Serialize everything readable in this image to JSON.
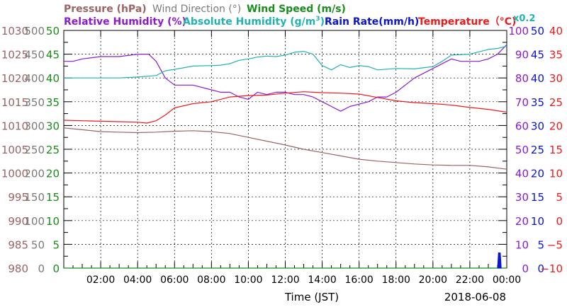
{
  "legend": {
    "pressure": "Pressure (hPa)",
    "wind_direction": "Wind Direction (°)",
    "wind_speed": "Wind Speed (m/s)",
    "relative_humidity": "Relative Humidity (%)",
    "absolute_humidity_prefix": "Absolute Humidity (g/m",
    "absolute_humidity_sup": "3",
    "absolute_humidity_suffix": ")",
    "rain_rate": "Rain Rate(mm/h)",
    "temperature": "Temperature（°C)",
    "abs_scale": "x0.2"
  },
  "colors": {
    "pressure": "#9a6464",
    "wind_direction": "#7a7a7a",
    "wind_speed": "#1a8c1a",
    "relative_humidity": "#8c1ad2",
    "absolute_humidity": "#22b2b2",
    "rain_rate": "#0a14d2",
    "temperature": "#ee1a1a"
  },
  "chart_data": {
    "type": "line",
    "xlabel": "Time (JST)",
    "date_label": "2018-06-08",
    "x_tick_labels": [
      "02:00",
      "04:00",
      "06:00",
      "08:00",
      "10:00",
      "12:00",
      "14:00",
      "16:00",
      "18:00",
      "20:00",
      "22:00",
      "00:00"
    ],
    "xlim_hours": [
      0,
      24
    ],
    "grid": true,
    "axes": {
      "pressure": {
        "ticks": [
          "1030",
          "1025",
          "1020",
          "1015",
          "1010",
          "1005",
          "1000",
          "995",
          "990",
          "985",
          "980"
        ],
        "range": [
          980,
          1030
        ]
      },
      "wind_direction": {
        "ticks": [
          "500",
          "450",
          "400",
          "350",
          "300",
          "250",
          "200",
          "150",
          "100",
          "50",
          "0"
        ],
        "range": [
          0,
          500
        ]
      },
      "wind_speed": {
        "ticks": [
          "50",
          "45",
          "40",
          "35",
          "30",
          "25",
          "20",
          "15",
          "10",
          "5",
          "0"
        ],
        "range": [
          0,
          50
        ]
      },
      "relative_humidity": {
        "ticks": [
          "100",
          "90",
          "80",
          "70",
          "60",
          "50",
          "40",
          "30",
          "20",
          "10",
          "0"
        ],
        "range": [
          0,
          100
        ]
      },
      "rain_rate": {
        "ticks": [
          "50",
          "45",
          "40",
          "35",
          "30",
          "25",
          "20",
          "15",
          "10",
          "5",
          "0"
        ],
        "range": [
          0,
          50
        ]
      },
      "temperature": {
        "ticks": [
          "40",
          "35",
          "30",
          "25",
          "20",
          "15",
          "10",
          "5",
          "0",
          "−5",
          "−10"
        ],
        "range": [
          -10,
          40
        ]
      }
    },
    "series": [
      {
        "name": "Pressure (hPa)",
        "axis": "pressure",
        "x": [
          0,
          1,
          2,
          3,
          4,
          5,
          6,
          7,
          8,
          9,
          10,
          11,
          12,
          13,
          14,
          15,
          16,
          17,
          18,
          19,
          20,
          21,
          22,
          23,
          24
        ],
        "y": [
          1009.5,
          1009.1,
          1008.7,
          1008.6,
          1008.5,
          1008.6,
          1008.8,
          1008.9,
          1008.7,
          1008.3,
          1007.5,
          1006.7,
          1005.9,
          1005.0,
          1004.3,
          1003.6,
          1002.9,
          1002.5,
          1002.2,
          1001.9,
          1001.7,
          1001.6,
          1001.6,
          1001.3,
          1000.8
        ]
      },
      {
        "name": "Relative Humidity (%)",
        "axis": "relative_humidity",
        "x": [
          0,
          0.5,
          1,
          2,
          3,
          4,
          4.6,
          5,
          5.5,
          6,
          7,
          8,
          8.5,
          9,
          9.5,
          10,
          10.5,
          11,
          11.5,
          12,
          12.5,
          13,
          13.5,
          14,
          14.5,
          15,
          15.5,
          16,
          16.5,
          17,
          17.5,
          18,
          19,
          20,
          21,
          21.5,
          22,
          22.5,
          23,
          23.5,
          24
        ],
        "y": [
          87,
          87,
          88,
          89,
          89,
          90,
          90,
          87,
          80,
          77,
          77,
          75,
          74,
          74,
          72,
          71,
          74,
          73,
          74,
          74,
          73,
          73,
          72,
          70,
          68,
          66,
          68,
          69,
          70,
          72,
          72,
          74,
          80,
          84,
          88,
          87,
          87,
          87,
          88,
          90,
          94
        ]
      },
      {
        "name": "Absolute Humidity (g/m3)",
        "axis": "pressure",
        "x": [
          0,
          1,
          2,
          3,
          4,
          5,
          5.5,
          6,
          7,
          8,
          8.5,
          9,
          9.5,
          10,
          10.5,
          11,
          11.5,
          12,
          12.5,
          13,
          13.5,
          14,
          14.5,
          15,
          15.5,
          16,
          16.5,
          17,
          18,
          19,
          20,
          20.5,
          21,
          22,
          23,
          23.5,
          24
        ],
        "y": [
          1020,
          1020,
          1020,
          1020,
          1020.2,
          1020.5,
          1021.5,
          1021.8,
          1022.5,
          1022.6,
          1022.7,
          1023,
          1023.7,
          1024,
          1024.4,
          1024.6,
          1024.5,
          1024.8,
          1025.4,
          1025.6,
          1025,
          1022.6,
          1021.7,
          1022.8,
          1022.2,
          1022.6,
          1022.4,
          1021.7,
          1022,
          1021.9,
          1022.4,
          1023.5,
          1024.8,
          1025,
          1026,
          1026.2,
          1026.7
        ]
      },
      {
        "name": "Temperature（°C)",
        "axis": "temperature",
        "x": [
          0,
          1,
          2,
          3,
          4,
          4.5,
          5,
          5.5,
          6,
          7,
          8,
          9,
          10,
          11,
          12,
          13,
          14,
          15,
          16,
          17,
          18,
          19,
          20,
          21,
          22,
          23,
          24
        ],
        "y": [
          21.1,
          21.0,
          20.9,
          20.8,
          20.7,
          20.5,
          21.0,
          22.2,
          23.7,
          24.6,
          25.0,
          26.0,
          26.3,
          26.4,
          26.8,
          27.1,
          26.9,
          26.8,
          26.6,
          25.9,
          25.2,
          24.8,
          24.6,
          24.3,
          23.8,
          23.4,
          22.8
        ]
      },
      {
        "name": "Wind Direction (°)",
        "axis": "wind_direction",
        "x": [],
        "y": []
      },
      {
        "name": "Wind Speed (m/s)",
        "axis": "wind_speed",
        "x": [
          0,
          24
        ],
        "y": [
          0,
          0
        ]
      },
      {
        "name": "Rain Rate(mm/h)",
        "axis": "rain_rate",
        "x": [
          23.5,
          23.55,
          23.65,
          23.7
        ],
        "y": [
          0,
          3.2,
          3.2,
          0
        ]
      }
    ]
  }
}
